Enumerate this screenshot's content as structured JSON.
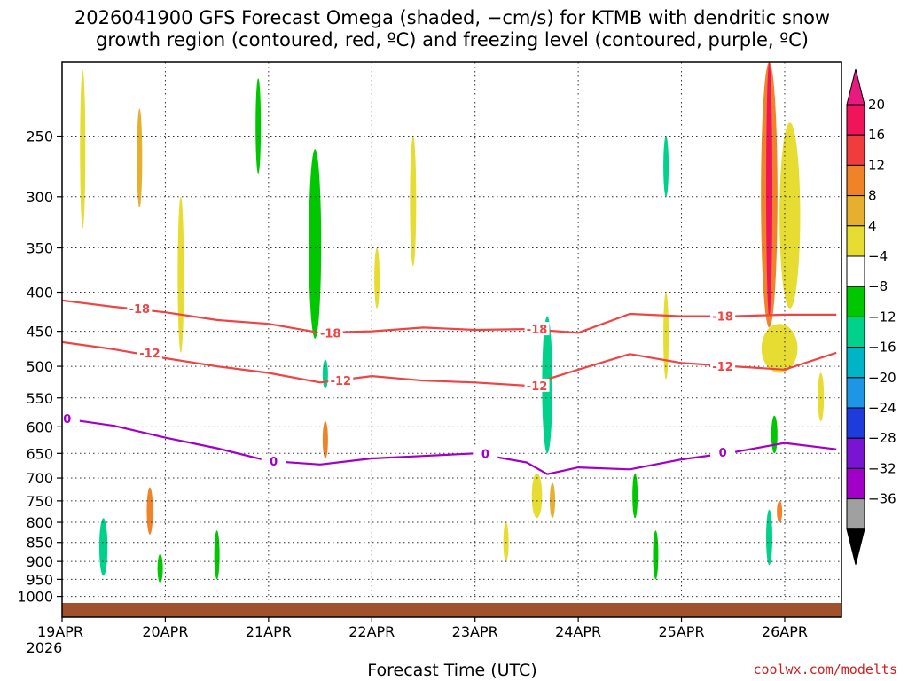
{
  "chart_data": {
    "type": "heatmap",
    "title_lines": [
      "2026041900 GFS Forecast Omega (shaded, −cm/s) for KTMB with dendritic snow",
      "growth region (contoured, red, ºC) and freezing level (contoured, purple, ºC)"
    ],
    "xlabel": "Forecast Time (UTC)",
    "credit": "coolwx.com/modelts",
    "x_ticks": [
      "19APR",
      "20APR",
      "21APR",
      "22APR",
      "23APR",
      "24APR",
      "25APR",
      "26APR"
    ],
    "x_year": "2026",
    "y_ticks": [
      "250",
      "300",
      "350",
      "400",
      "450",
      "500",
      "550",
      "600",
      "650",
      "700",
      "750",
      "800",
      "850",
      "900",
      "950",
      "1000"
    ],
    "y_scale": "log-pressure",
    "y_range": [
      1020,
      200
    ],
    "x_range_days": [
      0,
      7.55
    ],
    "grid": true,
    "colorbar": {
      "levels": [
        "20",
        "16",
        "12",
        "8",
        "4",
        "−4",
        "−8",
        "−12",
        "−16",
        "−20",
        "−24",
        "−28",
        "−32",
        "−36"
      ],
      "colors": [
        "#f0145a",
        "#f03c3c",
        "#f08228",
        "#e6af2d",
        "#e6dc32",
        "#ffffff",
        "#00c800",
        "#00d28c",
        "#00b4c8",
        "#1e96e6",
        "#1e3cdc",
        "#7814d2",
        "#a000c8",
        "#a0a0a0"
      ],
      "top_arrow_color": "#e8197f",
      "bottom_arrow_color": "#000000"
    },
    "contours": [
      {
        "label": "-18",
        "color": "#ee4444",
        "points": [
          [
            0,
            410
          ],
          [
            0.5,
            418
          ],
          [
            1,
            425
          ],
          [
            1.5,
            435
          ],
          [
            2,
            440
          ],
          [
            2.5,
            452
          ],
          [
            3,
            450
          ],
          [
            3.5,
            445
          ],
          [
            4,
            448
          ],
          [
            4.5,
            447
          ],
          [
            5,
            452
          ],
          [
            5.5,
            427
          ],
          [
            6,
            430
          ],
          [
            6.5,
            430
          ],
          [
            7,
            428
          ],
          [
            7.5,
            428
          ]
        ],
        "label_at": [
          [
            0.75,
            420
          ],
          [
            2.6,
            452
          ],
          [
            4.6,
            447
          ],
          [
            6.4,
            430
          ]
        ]
      },
      {
        "label": "-12",
        "color": "#ee4444",
        "points": [
          [
            0,
            465
          ],
          [
            0.5,
            475
          ],
          [
            1,
            488
          ],
          [
            1.5,
            500
          ],
          [
            2,
            510
          ],
          [
            2.5,
            525
          ],
          [
            3,
            515
          ],
          [
            3.5,
            522
          ],
          [
            4,
            525
          ],
          [
            4.5,
            530
          ],
          [
            5,
            505
          ],
          [
            5.5,
            482
          ],
          [
            6,
            495
          ],
          [
            6.5,
            500
          ],
          [
            7,
            505
          ],
          [
            7.5,
            480
          ]
        ],
        "label_at": [
          [
            0.85,
            480
          ],
          [
            2.7,
            522
          ],
          [
            4.6,
            530
          ],
          [
            6.4,
            500
          ]
        ]
      },
      {
        "label": "0",
        "color": "#a000c8",
        "points": [
          [
            0,
            585
          ],
          [
            0.5,
            598
          ],
          [
            1,
            620
          ],
          [
            1.5,
            640
          ],
          [
            2,
            665
          ],
          [
            2.5,
            672
          ],
          [
            3,
            660
          ],
          [
            3.5,
            655
          ],
          [
            4,
            650
          ],
          [
            4.5,
            668
          ],
          [
            4.7,
            692
          ],
          [
            5,
            678
          ],
          [
            5.5,
            682
          ],
          [
            6,
            662
          ],
          [
            6.5,
            648
          ],
          [
            7,
            630
          ],
          [
            7.5,
            642
          ]
        ],
        "label_at": [
          [
            0.05,
            585
          ],
          [
            2.05,
            665
          ],
          [
            4.1,
            650
          ],
          [
            6.4,
            648
          ]
        ]
      }
    ],
    "omega_patches": [
      {
        "x": 0.2,
        "p1": 205,
        "p2": 330,
        "w": 0.05,
        "v": 4
      },
      {
        "x": 0.75,
        "p1": 230,
        "p2": 310,
        "w": 0.05,
        "v": 8
      },
      {
        "x": 1.15,
        "p1": 300,
        "p2": 480,
        "w": 0.06,
        "v": 4
      },
      {
        "x": 1.9,
        "p1": 210,
        "p2": 280,
        "w": 0.04,
        "v": -8
      },
      {
        "x": 2.1,
        "p1": 250,
        "p2": 420,
        "w": 0.16,
        "v": -4
      },
      {
        "x": 2.45,
        "p1": 260,
        "p2": 460,
        "w": 0.12,
        "v": -8
      },
      {
        "x": 2.55,
        "p1": 490,
        "p2": 535,
        "w": 0.04,
        "v": -12
      },
      {
        "x": 2.55,
        "p1": 590,
        "p2": 660,
        "w": 0.04,
        "v": 12
      },
      {
        "x": 3.05,
        "p1": 350,
        "p2": 420,
        "w": 0.05,
        "v": 4
      },
      {
        "x": 3.4,
        "p1": 250,
        "p2": 370,
        "w": 0.06,
        "v": 4
      },
      {
        "x": 4.4,
        "p1": 240,
        "p2": 380,
        "w": 0.06,
        "v": -4
      },
      {
        "x": 4.7,
        "p1": 430,
        "p2": 650,
        "w": 0.1,
        "v": -12
      },
      {
        "x": 4.75,
        "p1": 200,
        "p2": 430,
        "w": 0.12,
        "v": -4
      },
      {
        "x": 4.75,
        "p1": 710,
        "p2": 790,
        "w": 0.05,
        "v": 8
      },
      {
        "x": 5.85,
        "p1": 250,
        "p2": 300,
        "w": 0.05,
        "v": -12
      },
      {
        "x": 5.85,
        "p1": 400,
        "p2": 520,
        "w": 0.05,
        "v": 4
      },
      {
        "x": 6.85,
        "p1": 200,
        "p2": 445,
        "w": 0.16,
        "v": 12
      },
      {
        "x": 6.85,
        "p1": 200,
        "p2": 430,
        "w": 0.06,
        "v": 20
      },
      {
        "x": 7.05,
        "p1": 240,
        "p2": 420,
        "w": 0.2,
        "v": 4
      },
      {
        "x": 6.95,
        "p1": 440,
        "p2": 510,
        "w": 0.35,
        "v": 4
      },
      {
        "x": 6.9,
        "p1": 580,
        "p2": 650,
        "w": 0.06,
        "v": -8
      },
      {
        "x": 6.85,
        "p1": 770,
        "p2": 910,
        "w": 0.06,
        "v": -12
      },
      {
        "x": 6.95,
        "p1": 750,
        "p2": 800,
        "w": 0.05,
        "v": 12
      },
      {
        "x": 0.4,
        "p1": 790,
        "p2": 940,
        "w": 0.08,
        "v": -12
      },
      {
        "x": 0.85,
        "p1": 720,
        "p2": 830,
        "w": 0.06,
        "v": 12
      },
      {
        "x": 0.95,
        "p1": 880,
        "p2": 960,
        "w": 0.05,
        "v": -8
      },
      {
        "x": 1.5,
        "p1": 820,
        "p2": 950,
        "w": 0.04,
        "v": -8
      },
      {
        "x": 4.3,
        "p1": 800,
        "p2": 900,
        "w": 0.05,
        "v": 4
      },
      {
        "x": 4.6,
        "p1": 690,
        "p2": 790,
        "w": 0.1,
        "v": 4
      },
      {
        "x": 5.55,
        "p1": 690,
        "p2": 790,
        "w": 0.05,
        "v": -8
      },
      {
        "x": 5.75,
        "p1": 820,
        "p2": 950,
        "w": 0.05,
        "v": -8
      },
      {
        "x": 7.35,
        "p1": 510,
        "p2": 590,
        "w": 0.06,
        "v": 4
      }
    ]
  }
}
